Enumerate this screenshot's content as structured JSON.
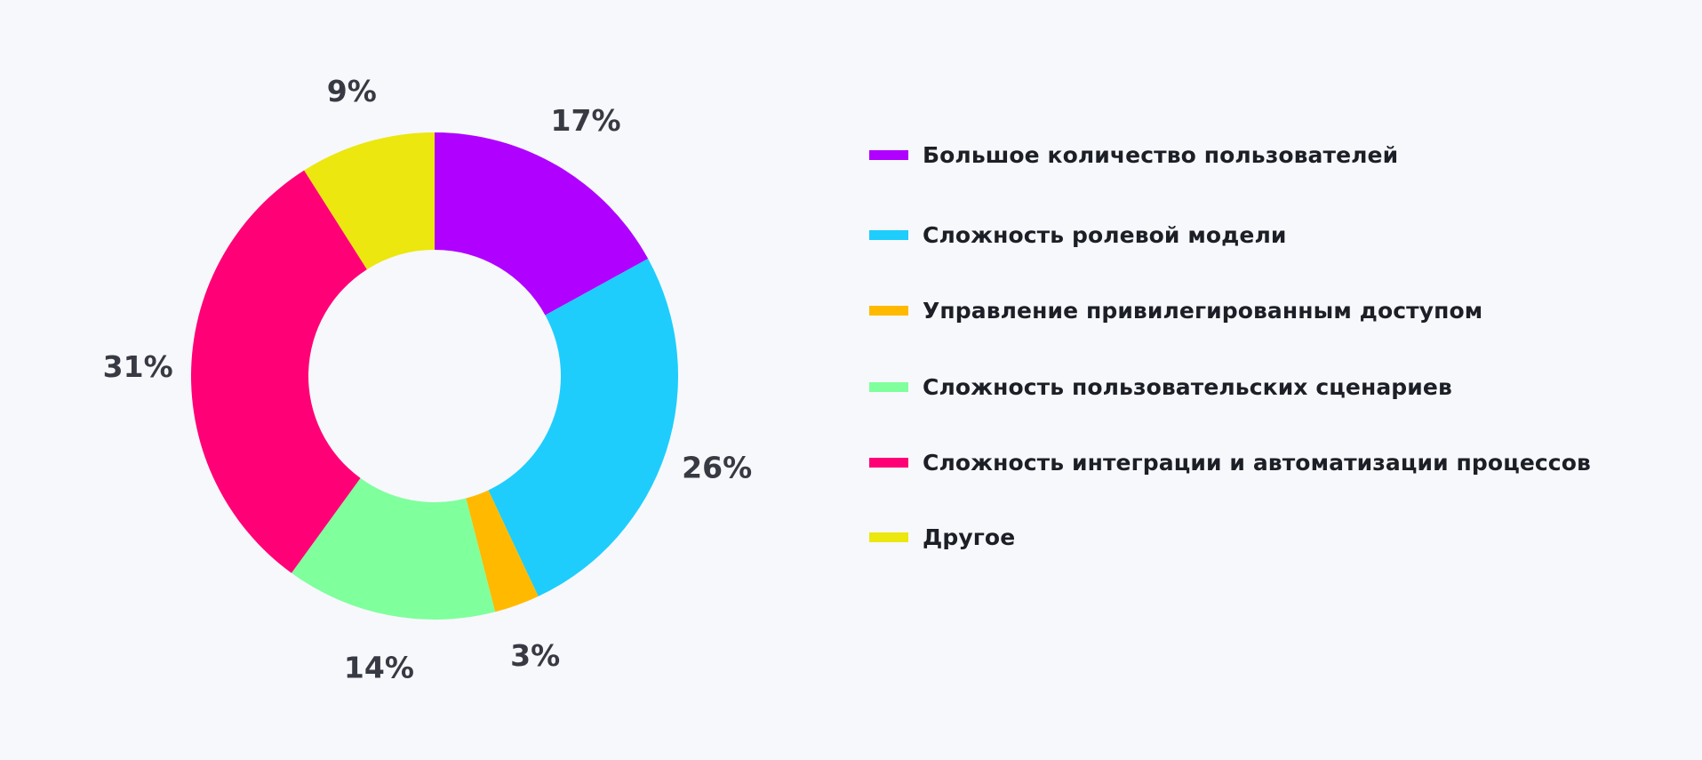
{
  "chart_data": {
    "type": "pie",
    "donut": true,
    "categories": [
      "Большое количество пользователей",
      "Сложность ролевой модели",
      "Управление привилегированным доступом",
      "Сложность пользовательских сценариев",
      "Сложность интеграции и автоматизации процессов",
      "Другое"
    ],
    "values": [
      17,
      26,
      3,
      14,
      31,
      9
    ],
    "value_labels": [
      "17%",
      "26%",
      "3%",
      "14%",
      "31%",
      "9%"
    ],
    "colors": [
      "#b000ff",
      "#1ecdfc",
      "#ffba00",
      "#80ff9d",
      "#ff0077",
      "#ebe70f"
    ],
    "legend_position": "right",
    "start_angle": "12 o'clock",
    "direction": "clockwise",
    "title": ""
  }
}
